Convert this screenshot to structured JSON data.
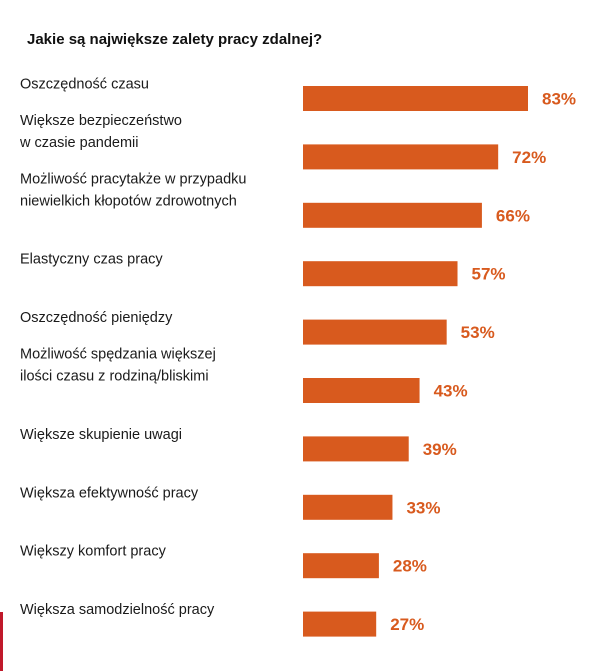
{
  "colors": {
    "bar": "#D85A1E",
    "value_text": "#D85A1E",
    "edge_mark": "#C0182A"
  },
  "chart_data": {
    "type": "bar",
    "orientation": "horizontal",
    "title": "Jakie są największe zalety pracy zdalnej?",
    "value_suffix": "%",
    "xlim": [
      0,
      83
    ],
    "categories": [
      [
        "Oszczędność czasu"
      ],
      [
        "Większe bezpieczeństwo",
        "w czasie pandemii"
      ],
      [
        "Możliwość pracytakże w przypadku",
        "niewielkich kłopotów zdrowotnych"
      ],
      [
        "Elastyczny czas pracy"
      ],
      [
        "Oszczędność pieniędzy"
      ],
      [
        "Możliwość spędzania większej",
        "ilości czasu z rodziną/bliskimi"
      ],
      [
        "Większe skupienie uwagi"
      ],
      [
        "Większa efektywność pracy"
      ],
      [
        "Większy komfort pracy"
      ],
      [
        "Większa samodzielność pracy"
      ]
    ],
    "values": [
      83,
      72,
      66,
      57,
      53,
      43,
      39,
      33,
      28,
      27
    ],
    "data_labels": [
      "83%",
      "72%",
      "66%",
      "57%",
      "53%",
      "43%",
      "39%",
      "33%",
      "28%",
      "27%"
    ]
  }
}
